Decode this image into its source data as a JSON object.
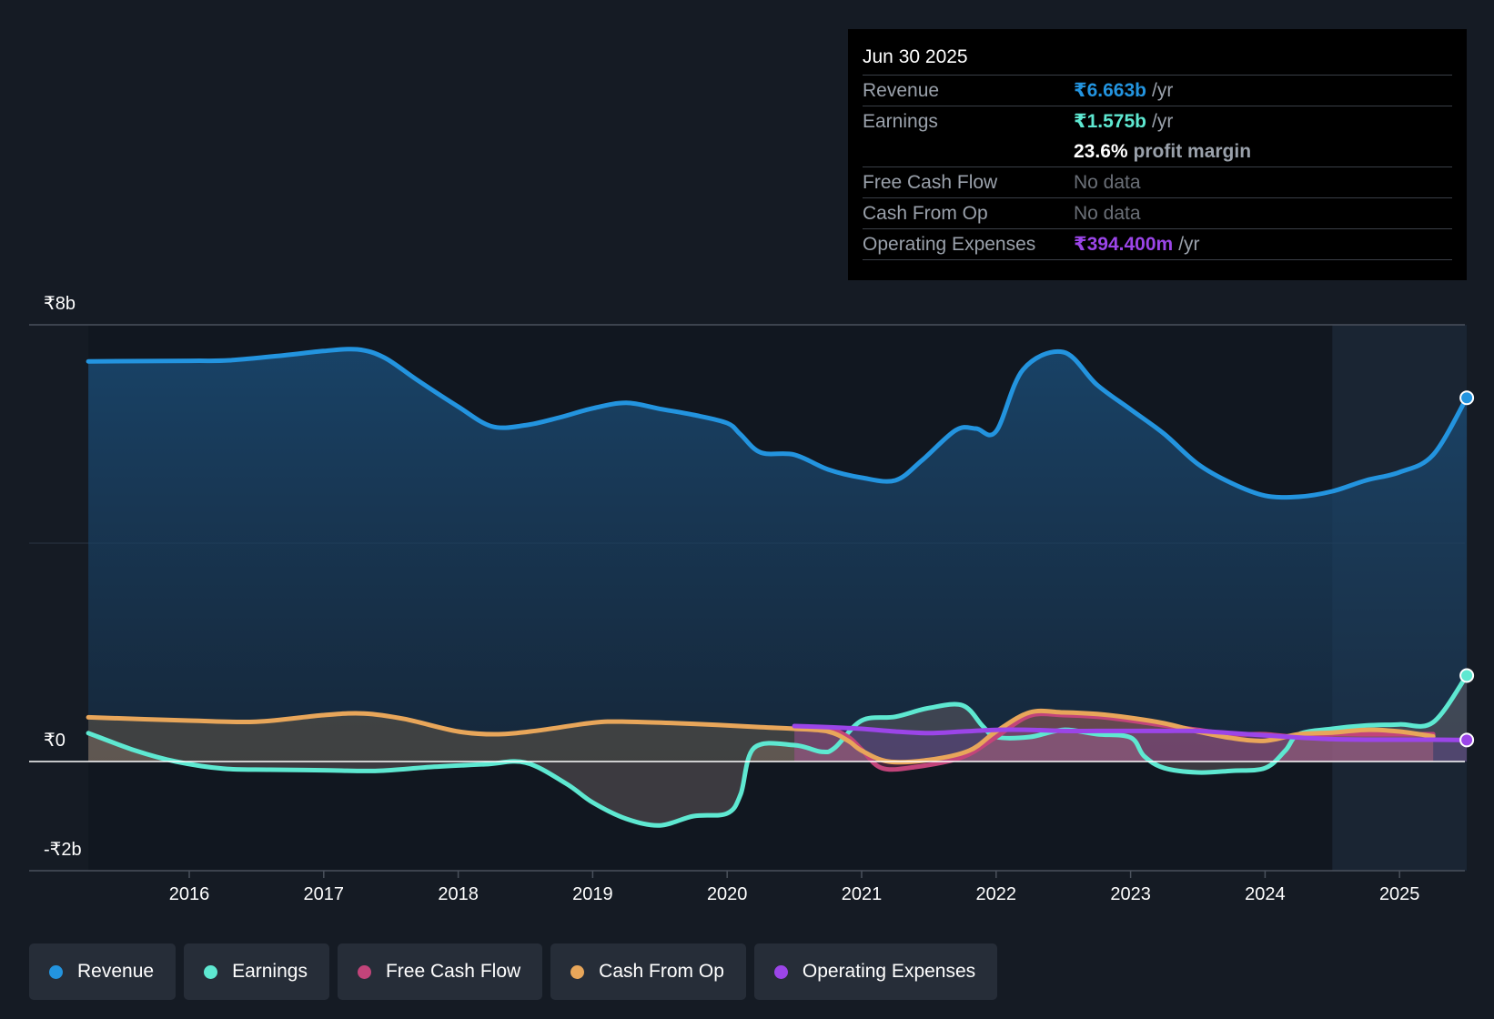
{
  "chart_data": {
    "type": "area",
    "currency": "₹",
    "y_top_label": "₹8b",
    "y_zero_label": "₹0",
    "y_bottom_label": "-₹2b",
    "ylim": [
      -2,
      8
    ],
    "xlim": [
      2015.25,
      2025.5
    ],
    "x_ticks": [
      "2016",
      "2017",
      "2018",
      "2019",
      "2020",
      "2021",
      "2022",
      "2023",
      "2024",
      "2025"
    ],
    "forecast_shade_start": 2024.5,
    "series": [
      {
        "name": "Revenue",
        "color": "#2394df",
        "points": [
          [
            2015.25,
            7.33
          ],
          [
            2016.0,
            7.34
          ],
          [
            2016.3,
            7.35
          ],
          [
            2016.7,
            7.44
          ],
          [
            2017.0,
            7.52
          ],
          [
            2017.25,
            7.55
          ],
          [
            2017.45,
            7.4
          ],
          [
            2017.7,
            6.98
          ],
          [
            2018.0,
            6.5
          ],
          [
            2018.25,
            6.14
          ],
          [
            2018.5,
            6.16
          ],
          [
            2018.75,
            6.3
          ],
          [
            2019.0,
            6.47
          ],
          [
            2019.25,
            6.57
          ],
          [
            2019.5,
            6.46
          ],
          [
            2019.75,
            6.35
          ],
          [
            2020.0,
            6.2
          ],
          [
            2020.1,
            5.99
          ],
          [
            2020.25,
            5.66
          ],
          [
            2020.5,
            5.62
          ],
          [
            2020.75,
            5.35
          ],
          [
            2021.0,
            5.2
          ],
          [
            2021.25,
            5.15
          ],
          [
            2021.45,
            5.52
          ],
          [
            2021.7,
            6.07
          ],
          [
            2021.85,
            6.1
          ],
          [
            2022.0,
            6.05
          ],
          [
            2022.2,
            7.18
          ],
          [
            2022.5,
            7.5
          ],
          [
            2022.75,
            6.9
          ],
          [
            2023.0,
            6.45
          ],
          [
            2023.25,
            6.0
          ],
          [
            2023.5,
            5.45
          ],
          [
            2023.75,
            5.1
          ],
          [
            2024.0,
            4.87
          ],
          [
            2024.25,
            4.85
          ],
          [
            2024.5,
            4.95
          ],
          [
            2024.75,
            5.15
          ],
          [
            2025.0,
            5.3
          ],
          [
            2025.25,
            5.62
          ],
          [
            2025.5,
            6.663
          ]
        ]
      },
      {
        "name": "Earnings",
        "color": "#5ee8d1",
        "points": [
          [
            2015.25,
            0.52
          ],
          [
            2015.6,
            0.2
          ],
          [
            2015.9,
            0.0
          ],
          [
            2016.25,
            -0.13
          ],
          [
            2016.6,
            -0.15
          ],
          [
            2017.0,
            -0.16
          ],
          [
            2017.4,
            -0.17
          ],
          [
            2017.8,
            -0.1
          ],
          [
            2018.2,
            -0.05
          ],
          [
            2018.5,
            -0.02
          ],
          [
            2018.8,
            -0.4
          ],
          [
            2019.0,
            -0.75
          ],
          [
            2019.25,
            -1.05
          ],
          [
            2019.5,
            -1.17
          ],
          [
            2019.75,
            -1.0
          ],
          [
            2020.0,
            -0.95
          ],
          [
            2020.1,
            -0.6
          ],
          [
            2020.2,
            0.25
          ],
          [
            2020.5,
            0.3
          ],
          [
            2020.7,
            0.18
          ],
          [
            2020.8,
            0.25
          ],
          [
            2021.0,
            0.75
          ],
          [
            2021.25,
            0.82
          ],
          [
            2021.5,
            0.98
          ],
          [
            2021.75,
            1.03
          ],
          [
            2021.9,
            0.65
          ],
          [
            2022.0,
            0.45
          ],
          [
            2022.25,
            0.45
          ],
          [
            2022.5,
            0.58
          ],
          [
            2022.75,
            0.5
          ],
          [
            2023.0,
            0.44
          ],
          [
            2023.1,
            0.1
          ],
          [
            2023.25,
            -0.12
          ],
          [
            2023.5,
            -0.2
          ],
          [
            2023.75,
            -0.17
          ],
          [
            2024.0,
            -0.12
          ],
          [
            2024.15,
            0.2
          ],
          [
            2024.25,
            0.5
          ],
          [
            2024.5,
            0.6
          ],
          [
            2024.75,
            0.66
          ],
          [
            2025.0,
            0.68
          ],
          [
            2025.25,
            0.72
          ],
          [
            2025.5,
            1.575
          ]
        ]
      },
      {
        "name": "Free Cash Flow",
        "color": "#c2447a",
        "points": [
          [
            2020.5,
            0.6
          ],
          [
            2020.75,
            0.6
          ],
          [
            2020.9,
            0.45
          ],
          [
            2021.0,
            0.22
          ],
          [
            2021.15,
            -0.12
          ],
          [
            2021.4,
            -0.1
          ],
          [
            2021.75,
            0.08
          ],
          [
            2022.0,
            0.45
          ],
          [
            2022.25,
            0.84
          ],
          [
            2022.5,
            0.85
          ],
          [
            2022.75,
            0.82
          ],
          [
            2023.0,
            0.75
          ],
          [
            2023.25,
            0.66
          ],
          [
            2023.5,
            0.58
          ],
          [
            2023.75,
            0.5
          ],
          [
            2024.0,
            0.5
          ],
          [
            2024.25,
            0.45
          ],
          [
            2024.5,
            0.5
          ],
          [
            2024.75,
            0.5
          ],
          [
            2025.0,
            0.5
          ],
          [
            2025.25,
            0.5
          ]
        ]
      },
      {
        "name": "Cash From Op",
        "color": "#e8a65a",
        "points": [
          [
            2015.25,
            0.81
          ],
          [
            2016.0,
            0.75
          ],
          [
            2016.5,
            0.73
          ],
          [
            2017.0,
            0.85
          ],
          [
            2017.3,
            0.88
          ],
          [
            2017.6,
            0.78
          ],
          [
            2018.0,
            0.55
          ],
          [
            2018.3,
            0.5
          ],
          [
            2018.6,
            0.57
          ],
          [
            2019.0,
            0.71
          ],
          [
            2019.25,
            0.73
          ],
          [
            2019.75,
            0.69
          ],
          [
            2020.25,
            0.63
          ],
          [
            2020.5,
            0.6
          ],
          [
            2020.75,
            0.55
          ],
          [
            2020.9,
            0.38
          ],
          [
            2021.0,
            0.2
          ],
          [
            2021.2,
            0.0
          ],
          [
            2021.5,
            0.03
          ],
          [
            2021.8,
            0.2
          ],
          [
            2022.0,
            0.55
          ],
          [
            2022.25,
            0.9
          ],
          [
            2022.5,
            0.9
          ],
          [
            2022.75,
            0.87
          ],
          [
            2023.0,
            0.8
          ],
          [
            2023.25,
            0.7
          ],
          [
            2023.5,
            0.55
          ],
          [
            2023.75,
            0.43
          ],
          [
            2024.0,
            0.38
          ],
          [
            2024.25,
            0.5
          ],
          [
            2024.5,
            0.53
          ],
          [
            2024.75,
            0.58
          ],
          [
            2025.0,
            0.55
          ],
          [
            2025.25,
            0.46
          ]
        ]
      },
      {
        "name": "Operating Expenses",
        "color": "#9b45e8",
        "points": [
          [
            2020.5,
            0.65
          ],
          [
            2020.75,
            0.63
          ],
          [
            2021.0,
            0.6
          ],
          [
            2021.25,
            0.55
          ],
          [
            2021.5,
            0.52
          ],
          [
            2021.75,
            0.55
          ],
          [
            2022.0,
            0.58
          ],
          [
            2022.25,
            0.58
          ],
          [
            2022.5,
            0.56
          ],
          [
            2022.75,
            0.56
          ],
          [
            2023.0,
            0.56
          ],
          [
            2023.25,
            0.56
          ],
          [
            2023.5,
            0.56
          ],
          [
            2023.75,
            0.52
          ],
          [
            2024.0,
            0.48
          ],
          [
            2024.25,
            0.44
          ],
          [
            2024.5,
            0.41
          ],
          [
            2024.75,
            0.4
          ],
          [
            2025.0,
            0.4
          ],
          [
            2025.25,
            0.4
          ],
          [
            2025.5,
            0.394
          ]
        ]
      }
    ]
  },
  "tooltip": {
    "date": "Jun 30 2025",
    "revenue_label": "Revenue",
    "revenue_value": "₹6.663b",
    "revenue_unit": "/yr",
    "earnings_label": "Earnings",
    "earnings_value": "₹1.575b",
    "earnings_unit": "/yr",
    "margin_value": "23.6%",
    "margin_label": "profit margin",
    "fcf_label": "Free Cash Flow",
    "fcf_value": "No data",
    "cfo_label": "Cash From Op",
    "cfo_value": "No data",
    "opex_label": "Operating Expenses",
    "opex_value": "₹394.400m",
    "opex_unit": "/yr"
  },
  "legend": {
    "revenue": "Revenue",
    "earnings": "Earnings",
    "fcf": "Free Cash Flow",
    "cfo": "Cash From Op",
    "opex": "Operating Expenses"
  },
  "colors": {
    "revenue": "#2394df",
    "earnings": "#5ee8d1",
    "fcf": "#c2447a",
    "cfo": "#e8a65a",
    "opex": "#9b45e8",
    "background": "#151b24"
  }
}
